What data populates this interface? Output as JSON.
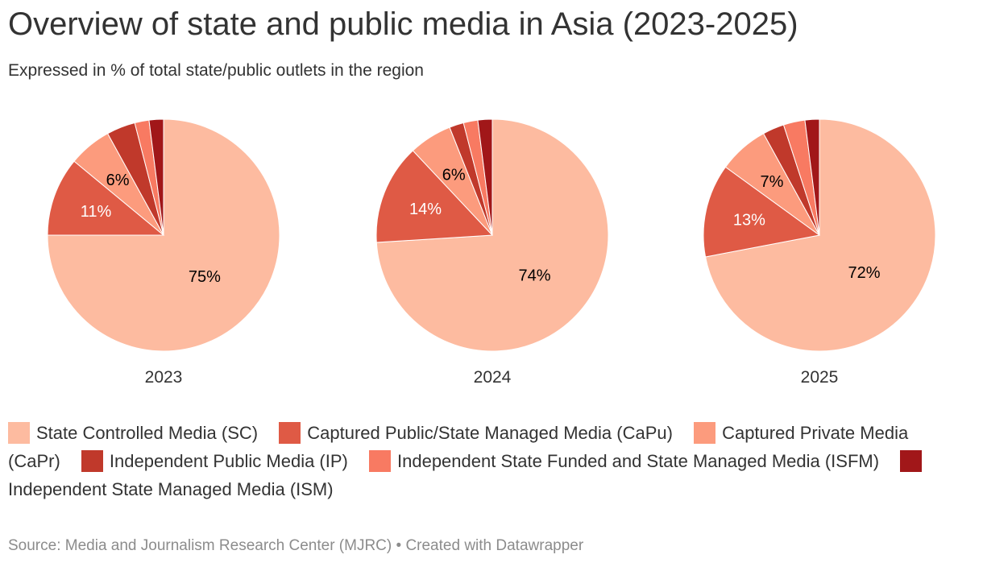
{
  "chart_data": {
    "type": "pie",
    "title": "Overview of state and public media in Asia (2023-2025)",
    "subtitle": "Expressed in % of total state/public outlets in the region",
    "source": "Source: Media and Journalism Research Center (MJRC) • Created with Datawrapper",
    "categories": [
      "State Controlled Media (SC)",
      "Captured Public/State Managed Media (CaPu)",
      "Captured Private Media (CaPr)",
      "Independent Public Media (IP)",
      "Independent State Funded and State Managed Media (ISFM)",
      "Independent State Managed Media (ISM)"
    ],
    "colors": [
      "#fdbba0",
      "#df5a45",
      "#fc9b7d",
      "#c0392b",
      "#f87a62",
      "#a11719"
    ],
    "pies": [
      {
        "label": "2023",
        "values": [
          75,
          11,
          6,
          4,
          2,
          2
        ],
        "data_labels": [
          "75%",
          "11%",
          "6%",
          "",
          "",
          ""
        ]
      },
      {
        "label": "2024",
        "values": [
          74,
          14,
          6,
          2,
          2,
          2
        ],
        "data_labels": [
          "74%",
          "14%",
          "6%",
          "",
          "",
          ""
        ]
      },
      {
        "label": "2025",
        "values": [
          72,
          13,
          7,
          3,
          3,
          2
        ],
        "data_labels": [
          "72%",
          "13%",
          "7%",
          "",
          "",
          ""
        ]
      }
    ],
    "legend_position": "bottom"
  }
}
